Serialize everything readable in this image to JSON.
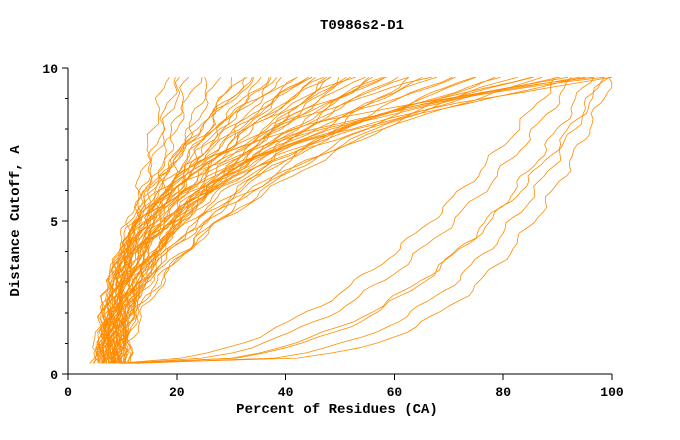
{
  "title": "T0986s2-D1",
  "chart_data": {
    "type": "line",
    "title": "T0986s2-D1",
    "xlabel": "Percent of Residues (CA)",
    "ylabel": "Distance Cutoff, A",
    "xlim": [
      0,
      100
    ],
    "ylim": [
      0,
      10
    ],
    "x_ticks": [
      0,
      20,
      40,
      60,
      80,
      100
    ],
    "y_ticks": [
      0,
      5,
      10
    ],
    "y_minor_ticks": [
      1,
      2,
      3,
      4,
      6,
      7,
      8,
      9
    ],
    "grid": false,
    "legend": "none",
    "line_color": "#ff8c00",
    "axis_color": "#000000",
    "y_start": 0.35,
    "y_end": 9.7,
    "series_model": "x(y) = start + (end-start)*((y-y_start)/(y_end-y_start))^shape",
    "series": [
      {
        "start": 6,
        "end": 18,
        "shape": 1.1
      },
      {
        "start": 7,
        "end": 20,
        "shape": 1.3
      },
      {
        "start": 8,
        "end": 22,
        "shape": 1.0
      },
      {
        "start": 6.5,
        "end": 24,
        "shape": 1.4
      },
      {
        "start": 9,
        "end": 26,
        "shape": 1.2
      },
      {
        "start": 7.5,
        "end": 28,
        "shape": 1.5
      },
      {
        "start": 8.5,
        "end": 30,
        "shape": 1.1
      },
      {
        "start": 5.5,
        "end": 21,
        "shape": 1.2
      },
      {
        "start": 5,
        "end": 32,
        "shape": 1.8
      },
      {
        "start": 6,
        "end": 34,
        "shape": 2.2
      },
      {
        "start": 7,
        "end": 36,
        "shape": 1.6
      },
      {
        "start": 8,
        "end": 38,
        "shape": 2.0
      },
      {
        "start": 9,
        "end": 40,
        "shape": 2.4
      },
      {
        "start": 10,
        "end": 42,
        "shape": 1.7
      },
      {
        "start": 6,
        "end": 44,
        "shape": 2.1
      },
      {
        "start": 7,
        "end": 46,
        "shape": 1.9
      },
      {
        "start": 8,
        "end": 48,
        "shape": 2.3
      },
      {
        "start": 9,
        "end": 50,
        "shape": 1.8
      },
      {
        "start": 10,
        "end": 52,
        "shape": 2.0
      },
      {
        "start": 11,
        "end": 54,
        "shape": 2.2
      },
      {
        "start": 5.5,
        "end": 56,
        "shape": 1.7
      },
      {
        "start": 6.5,
        "end": 58,
        "shape": 2.5
      },
      {
        "start": 7.5,
        "end": 60,
        "shape": 1.9
      },
      {
        "start": 8.5,
        "end": 35,
        "shape": 2.6
      },
      {
        "start": 9.5,
        "end": 45,
        "shape": 2.8
      },
      {
        "start": 10.5,
        "end": 55,
        "shape": 1.5
      },
      {
        "start": 5,
        "end": 48,
        "shape": 1.4
      },
      {
        "start": 6,
        "end": 52,
        "shape": 2.7
      },
      {
        "start": 7,
        "end": 42,
        "shape": 3.0
      },
      {
        "start": 8,
        "end": 38,
        "shape": 1.3
      },
      {
        "start": 9,
        "end": 58,
        "shape": 2.1
      },
      {
        "start": 10,
        "end": 33,
        "shape": 1.9
      },
      {
        "start": 11,
        "end": 47,
        "shape": 2.4
      },
      {
        "start": 6,
        "end": 51,
        "shape": 1.6
      },
      {
        "start": 7,
        "end": 59,
        "shape": 2.9
      },
      {
        "start": 8,
        "end": 44,
        "shape": 2.2
      },
      {
        "start": 5.5,
        "end": 37,
        "shape": 2.0
      },
      {
        "start": 6.5,
        "end": 49,
        "shape": 1.8
      },
      {
        "start": 6,
        "end": 62,
        "shape": 2.2
      },
      {
        "start": 7,
        "end": 65,
        "shape": 1.9
      },
      {
        "start": 8,
        "end": 68,
        "shape": 2.5
      },
      {
        "start": 9,
        "end": 70,
        "shape": 2.0
      },
      {
        "start": 10,
        "end": 72,
        "shape": 2.8
      },
      {
        "start": 11,
        "end": 75,
        "shape": 2.3
      },
      {
        "start": 6.5,
        "end": 78,
        "shape": 1.7
      },
      {
        "start": 7.5,
        "end": 80,
        "shape": 2.6
      },
      {
        "start": 8.5,
        "end": 82,
        "shape": 2.1
      },
      {
        "start": 9.5,
        "end": 85,
        "shape": 3.2
      },
      {
        "start": 10.5,
        "end": 88,
        "shape": 2.4
      },
      {
        "start": 7,
        "end": 90,
        "shape": 2.9
      },
      {
        "start": 8,
        "end": 63,
        "shape": 1.5
      },
      {
        "start": 9,
        "end": 67,
        "shape": 3.5
      },
      {
        "start": 10,
        "end": 74,
        "shape": 1.8
      },
      {
        "start": 6,
        "end": 86,
        "shape": 3.0
      },
      {
        "start": 7,
        "end": 92,
        "shape": 3.5
      },
      {
        "start": 8,
        "end": 94,
        "shape": 4.0
      },
      {
        "start": 9,
        "end": 96,
        "shape": 3.2
      },
      {
        "start": 10,
        "end": 98,
        "shape": 4.5
      },
      {
        "start": 8.5,
        "end": 100,
        "shape": 3.8
      },
      {
        "start": 9.5,
        "end": 97,
        "shape": 5.0
      },
      {
        "start": 9,
        "end": 96,
        "shape": 0.35
      },
      {
        "start": 10,
        "end": 100,
        "shape": 0.25
      },
      {
        "start": 11,
        "end": 93,
        "shape": 0.45
      },
      {
        "start": 12,
        "end": 98,
        "shape": 0.3
      },
      {
        "start": 10.5,
        "end": 90,
        "shape": 0.5
      },
      {
        "start": 11.5,
        "end": 99,
        "shape": 0.4
      }
    ]
  }
}
